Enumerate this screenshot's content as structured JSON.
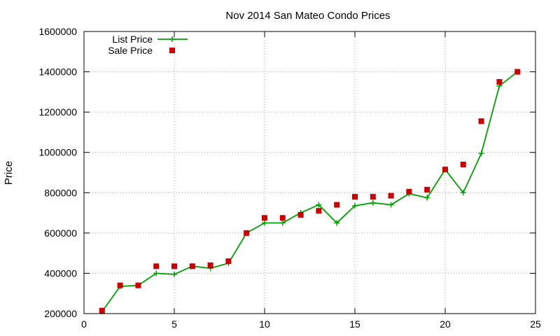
{
  "chart_data": {
    "type": "line",
    "title": "Nov 2014 San Mateo Condo Prices",
    "xlabel": "",
    "ylabel": "Price",
    "xlim": [
      0,
      25
    ],
    "ylim": [
      200000,
      1600000
    ],
    "x_ticks": [
      0,
      5,
      10,
      15,
      20,
      25
    ],
    "y_ticks": [
      200000,
      400000,
      600000,
      800000,
      1000000,
      1200000,
      1400000,
      1600000
    ],
    "grid": true,
    "legend_position": "top-left",
    "series": [
      {
        "name": "List Price",
        "style": "line-points",
        "marker": "plus",
        "color": "#00a000",
        "x": [
          1,
          2,
          3,
          4,
          5,
          6,
          7,
          8,
          9,
          10,
          11,
          12,
          13,
          14,
          15,
          16,
          17,
          18,
          19,
          20,
          21,
          22,
          23,
          24
        ],
        "y": [
          210000,
          335000,
          340000,
          400000,
          395000,
          435000,
          425000,
          450000,
          600000,
          650000,
          650000,
          700000,
          740000,
          650000,
          735000,
          750000,
          740000,
          795000,
          775000,
          915000,
          800000,
          995000,
          1330000,
          1400000
        ]
      },
      {
        "name": "Sale Price",
        "style": "points",
        "marker": "square",
        "color": "#cc0000",
        "x": [
          1,
          2,
          3,
          4,
          5,
          6,
          7,
          8,
          9,
          10,
          11,
          12,
          13,
          14,
          15,
          16,
          17,
          18,
          19,
          20,
          21,
          22,
          23,
          24
        ],
        "y": [
          215000,
          340000,
          340000,
          435000,
          435000,
          435000,
          440000,
          460000,
          600000,
          675000,
          675000,
          690000,
          710000,
          740000,
          780000,
          780000,
          785000,
          805000,
          815000,
          915000,
          940000,
          1155000,
          1350000,
          1400000
        ]
      }
    ]
  }
}
